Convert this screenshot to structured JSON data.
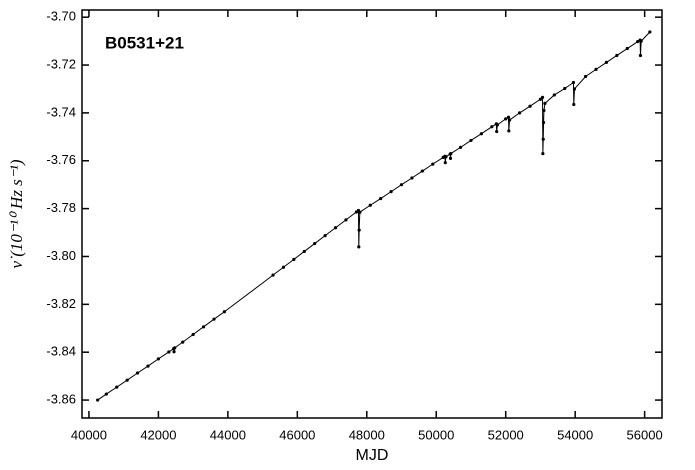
{
  "chart_data": {
    "type": "line",
    "title": "B0531+21",
    "xlabel": "MJD",
    "ylabel": "ν̇  (10⁻¹⁰ Hz s⁻¹)",
    "color": "#000000",
    "markers": true,
    "x": [
      40250,
      40500,
      40800,
      41100,
      41400,
      41700,
      42000,
      42300,
      42440,
      42450,
      42470,
      42700,
      43000,
      43300,
      43600,
      43900,
      45300,
      45600,
      45900,
      46200,
      46500,
      46800,
      47100,
      47400,
      47700,
      47760,
      47770,
      47780,
      47800,
      48100,
      48400,
      48700,
      49000,
      49300,
      49600,
      49900,
      50200,
      50250,
      50260,
      50280,
      50400,
      50410,
      50420,
      50700,
      51000,
      51300,
      51600,
      51730,
      51740,
      51760,
      52000,
      52080,
      52090,
      52110,
      52400,
      52700,
      53000,
      53060,
      53070,
      53080,
      53090,
      53100,
      53130,
      53400,
      53700,
      53950,
      53960,
      53980,
      54300,
      54600,
      54900,
      55200,
      55500,
      55800,
      55870,
      55880,
      55900,
      56150
    ],
    "values": [
      -3.86,
      -3.8575,
      -3.8546,
      -3.8517,
      -3.8487,
      -3.8458,
      -3.8428,
      -3.8399,
      -3.8385,
      -3.8398,
      -3.8382,
      -3.8358,
      -3.8326,
      -3.8294,
      -3.8262,
      -3.8231,
      -3.8078,
      -3.8045,
      -3.8012,
      -3.7979,
      -3.7946,
      -3.7913,
      -3.788,
      -3.7847,
      -3.7814,
      -3.7808,
      -3.796,
      -3.789,
      -3.7815,
      -3.7786,
      -3.7758,
      -3.7729,
      -3.77,
      -3.7672,
      -3.7643,
      -3.7614,
      -3.7586,
      -3.7581,
      -3.7608,
      -3.7583,
      -3.7572,
      -3.759,
      -3.757,
      -3.7544,
      -3.7515,
      -3.7487,
      -3.7458,
      -3.7446,
      -3.7478,
      -3.745,
      -3.7425,
      -3.7418,
      -3.7475,
      -3.743,
      -3.74,
      -3.7372,
      -3.7343,
      -3.7335,
      -3.757,
      -3.751,
      -3.744,
      -3.739,
      -3.736,
      -3.7325,
      -3.7298,
      -3.7273,
      -3.7365,
      -3.73,
      -3.7248,
      -3.7218,
      -3.7189,
      -3.716,
      -3.7131,
      -3.7102,
      -3.7096,
      -3.716,
      -3.71,
      -3.7062
    ],
    "xlim": [
      39800,
      56500
    ],
    "ylim": [
      -3.8675,
      -3.697
    ],
    "xticks": [
      40000,
      42000,
      44000,
      46000,
      48000,
      50000,
      52000,
      54000,
      56000
    ],
    "yticks": [
      {
        "value": -3.7,
        "label": "-3.70"
      },
      -3.72,
      -3.74,
      -3.76,
      -3.78,
      {
        "value": -3.8,
        "label": "-3.80"
      },
      -3.82,
      -3.84,
      -3.86
    ]
  }
}
